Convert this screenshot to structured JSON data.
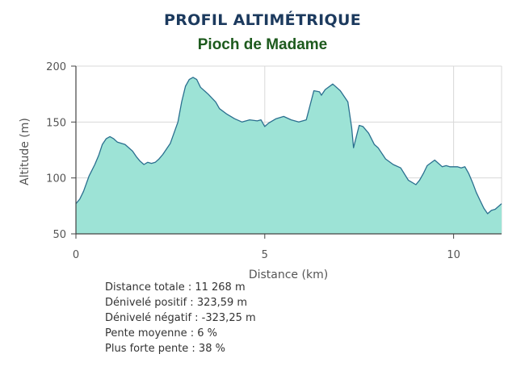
{
  "chart_data": {
    "type": "area",
    "title": "PROFIL ALTIMÉTRIQUE",
    "subtitle": "Pioch de Madame",
    "xlabel": "Distance (km)",
    "ylabel": "Altitude (m)",
    "xlim": [
      0,
      11.27
    ],
    "ylim": [
      50,
      200
    ],
    "xticks": [
      "0",
      "5",
      "10"
    ],
    "yticks": [
      "50",
      "100",
      "150",
      "200"
    ],
    "grid": true,
    "colors": {
      "fill": "#9de3d6",
      "line": "#2a6f8f",
      "grid": "#d8d8d8",
      "axis": "#444444"
    },
    "x": [
      0,
      0.1,
      0.2,
      0.35,
      0.5,
      0.6,
      0.7,
      0.8,
      0.9,
      1.0,
      1.1,
      1.3,
      1.5,
      1.6,
      1.7,
      1.8,
      1.9,
      2.0,
      2.1,
      2.2,
      2.3,
      2.5,
      2.7,
      2.8,
      2.9,
      3.0,
      3.1,
      3.2,
      3.3,
      3.5,
      3.7,
      3.8,
      4.0,
      4.2,
      4.4,
      4.6,
      4.8,
      4.9,
      5.0,
      5.1,
      5.3,
      5.5,
      5.7,
      5.9,
      6.1,
      6.2,
      6.3,
      6.45,
      6.5,
      6.6,
      6.8,
      7.0,
      7.2,
      7.3,
      7.35,
      7.5,
      7.6,
      7.75,
      7.9,
      8.0,
      8.2,
      8.4,
      8.6,
      8.8,
      9.0,
      9.1,
      9.2,
      9.3,
      9.5,
      9.7,
      9.8,
      9.9,
      10.0,
      10.1,
      10.2,
      10.3,
      10.4,
      10.5,
      10.6,
      10.7,
      10.8,
      10.9,
      11.0,
      11.1,
      11.27
    ],
    "values": [
      77,
      81,
      88,
      102,
      112,
      120,
      130,
      135,
      137,
      135,
      132,
      130,
      124,
      119,
      115,
      112,
      114,
      113,
      114,
      117,
      121,
      131,
      150,
      168,
      182,
      188,
      190,
      188,
      181,
      175,
      168,
      162,
      157,
      153,
      150,
      152,
      151,
      152,
      146,
      149,
      153,
      155,
      152,
      150,
      152,
      165,
      178,
      177,
      174,
      179,
      184,
      178,
      168,
      145,
      127,
      147,
      146,
      140,
      130,
      127,
      117,
      112,
      109,
      98,
      94,
      98,
      104,
      111,
      116,
      110,
      111,
      110,
      110,
      110,
      109,
      110,
      104,
      96,
      87,
      80,
      73,
      68,
      71,
      72,
      77
    ]
  },
  "stats": {
    "distance": "Distance totale : 11 268 m",
    "positive": "Dénivelé positif : 323,59 m",
    "negative": "Dénivelé négatif : -323,25 m",
    "average": "Pente moyenne : 6 %",
    "steepest": "Plus forte pente : 38 %"
  }
}
